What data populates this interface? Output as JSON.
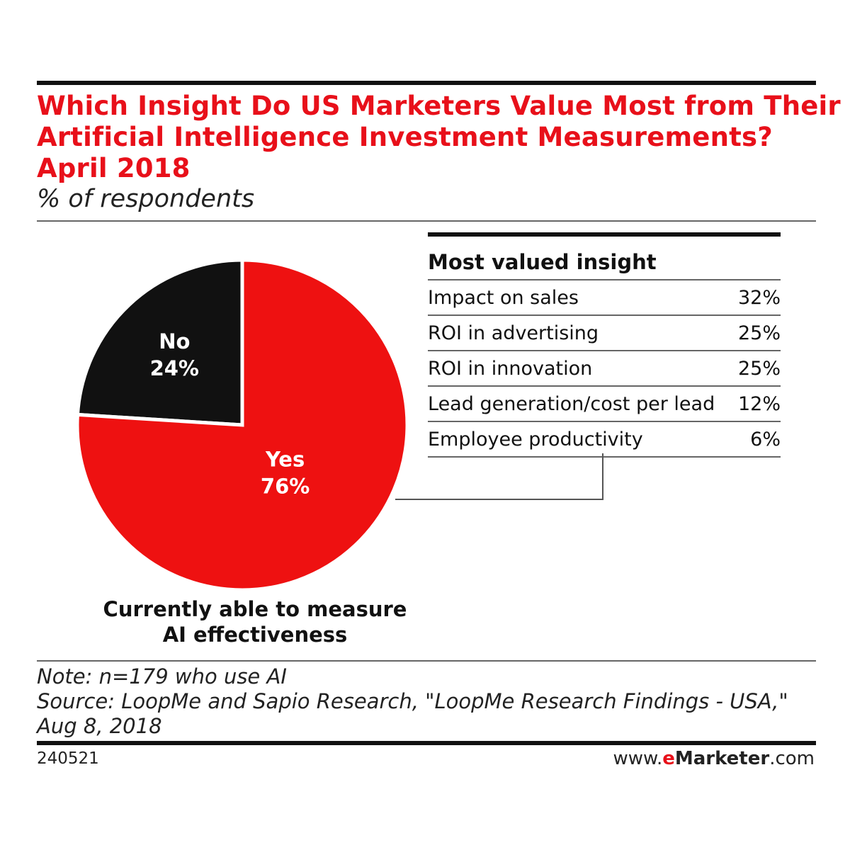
{
  "header": {
    "title_lines": [
      "Which Insight Do US Marketers Value Most from Their",
      "Artificial Intelligence Investment Measurements?",
      "April 2018"
    ],
    "subtitle": "% of respondents"
  },
  "chart_data": [
    {
      "type": "pie",
      "caption_lines": [
        "Currently able to measure",
        "AI effectiveness"
      ],
      "slices": [
        {
          "label": "No",
          "value": 24,
          "display": "24%",
          "color": "#111111"
        },
        {
          "label": "Yes",
          "value": 76,
          "display": "76%",
          "color": "#ee1111"
        }
      ]
    },
    {
      "type": "table",
      "title": "Most valued insight",
      "rows": [
        {
          "label": "Impact on sales",
          "value": 32,
          "display": "32%"
        },
        {
          "label": "ROI in advertising",
          "value": 25,
          "display": "25%"
        },
        {
          "label": "ROI in innovation",
          "value": 25,
          "display": "25%"
        },
        {
          "label": "Lead generation/cost per lead",
          "value": 12,
          "display": "12%"
        },
        {
          "label": "Employee productivity",
          "value": 6,
          "display": "6%"
        }
      ]
    }
  ],
  "footer": {
    "note_lines": [
      "Note: n=179 who use AI",
      "Source: LoopMe and Sapio Research, \"LoopMe Research Findings - USA,\"",
      "Aug 8, 2018"
    ],
    "chart_id": "240521",
    "brand_prefix": "www.",
    "brand_e": "e",
    "brand_name": "Marketer",
    "brand_suffix": ".com"
  }
}
